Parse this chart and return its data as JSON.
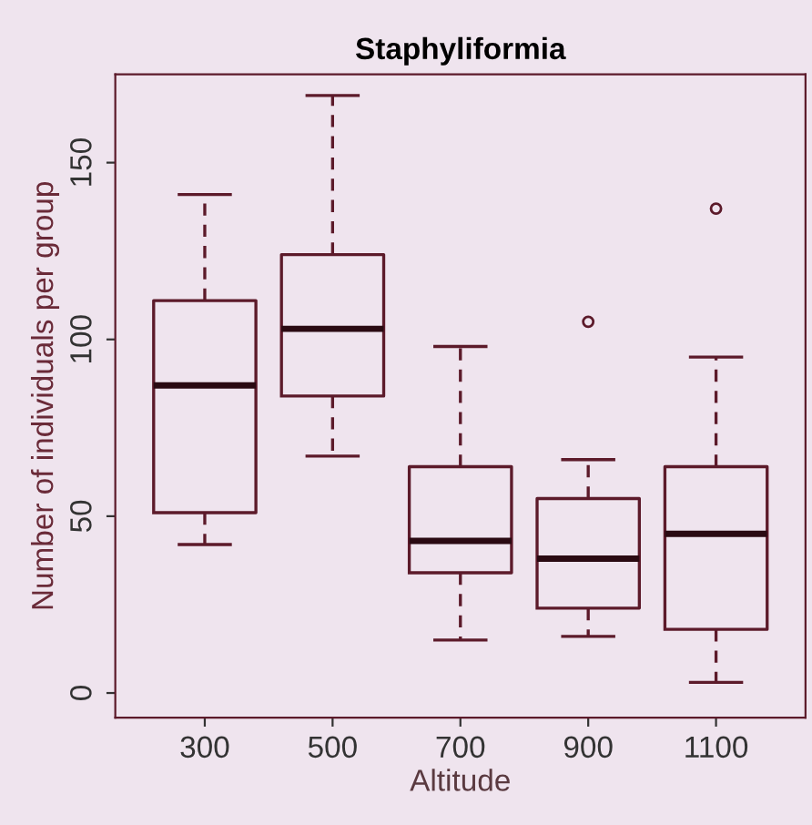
{
  "chart_data": {
    "type": "box",
    "title": "Staphyliformia",
    "xlabel": "Altitude",
    "ylabel": "Number of individuals per group",
    "categories": [
      "300",
      "500",
      "700",
      "900",
      "1100"
    ],
    "boxes": [
      {
        "low": 42,
        "q1": 51,
        "median": 87,
        "q3": 111,
        "high": 141
      },
      {
        "low": 67,
        "q1": 84,
        "median": 103,
        "q3": 124,
        "high": 169
      },
      {
        "low": 15,
        "q1": 34,
        "median": 43,
        "q3": 64,
        "high": 98
      },
      {
        "low": 16,
        "q1": 24,
        "median": 38,
        "q3": 55,
        "high": 66,
        "outliers": [
          105
        ]
      },
      {
        "low": 3,
        "q1": 18,
        "median": 45,
        "q3": 64,
        "high": 95,
        "outliers": [
          137
        ]
      }
    ],
    "color": "#5c1a2a",
    "ylim": [
      -7,
      175
    ],
    "yticks": [
      0,
      50,
      100,
      150
    ],
    "grid": false
  }
}
